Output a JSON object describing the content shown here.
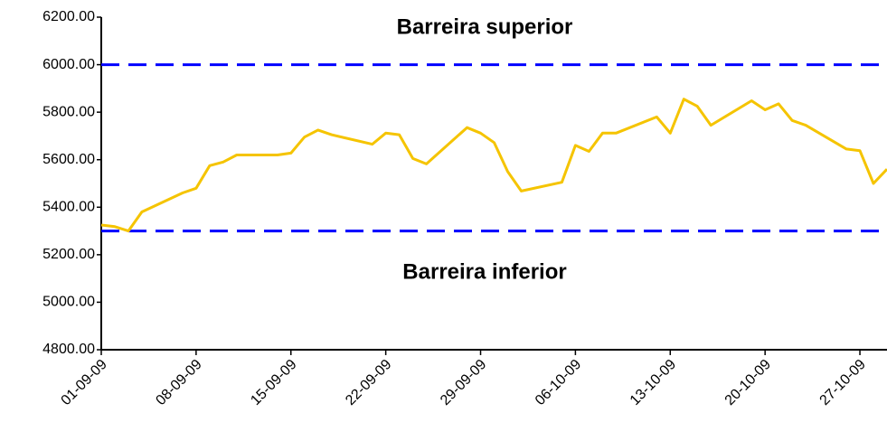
{
  "chart_data": {
    "type": "line",
    "x": [
      "01-09-09",
      "02-09-09",
      "03-09-09",
      "04-09-09",
      "07-09-09",
      "08-09-09",
      "09-09-09",
      "10-09-09",
      "11-09-09",
      "14-09-09",
      "15-09-09",
      "16-09-09",
      "17-09-09",
      "18-09-09",
      "21-09-09",
      "22-09-09",
      "23-09-09",
      "24-09-09",
      "25-09-09",
      "28-09-09",
      "29-09-09",
      "30-09-09",
      "01-10-09",
      "02-10-09",
      "05-10-09",
      "06-10-09",
      "07-10-09",
      "08-10-09",
      "09-10-09",
      "12-10-09",
      "13-10-09",
      "14-10-09",
      "15-10-09",
      "16-10-09",
      "19-10-09",
      "20-10-09",
      "21-10-09",
      "22-10-09",
      "23-10-09",
      "26-10-09",
      "27-10-09",
      "28-10-09",
      "29-10-09"
    ],
    "series": [
      {
        "color": "#f5c400",
        "values": [
          5325,
          5318,
          5300,
          5380,
          5460,
          5480,
          5575,
          5590,
          5620,
          5620,
          5628,
          5695,
          5725,
          5705,
          5665,
          5712,
          5705,
          5605,
          5582,
          5735,
          5712,
          5672,
          5550,
          5468,
          5505,
          5660,
          5635,
          5712,
          5712,
          5780,
          5712,
          5855,
          5825,
          5745,
          5848,
          5810,
          5835,
          5765,
          5745,
          5645,
          5638,
          5500,
          5560
        ]
      }
    ],
    "xlim": [
      "01-09-09",
      "29-10-09"
    ],
    "xticks": [
      "01-09-09",
      "08-09-09",
      "15-09-09",
      "22-09-09",
      "29-09-09",
      "06-10-09",
      "13-10-09",
      "20-10-09",
      "27-10-09"
    ],
    "ylim": [
      4800,
      6200
    ],
    "yticks": [
      {
        "value": 4800,
        "label": "4800.00"
      },
      {
        "value": 5000,
        "label": "5000.00"
      },
      {
        "value": 5200,
        "label": "5200.00"
      },
      {
        "value": 5400,
        "label": "5400.00"
      },
      {
        "value": 5600,
        "label": "5600.00"
      },
      {
        "value": 5800,
        "label": "5800.00"
      },
      {
        "value": 6000,
        "label": "6000.00"
      },
      {
        "value": 6200,
        "label": "6200.00"
      }
    ],
    "barriers": [
      {
        "label": "Barreira superior",
        "value": 6000
      },
      {
        "label": "Barreira inferior",
        "value": 5300
      }
    ],
    "barrier_color": "#0000ff"
  }
}
